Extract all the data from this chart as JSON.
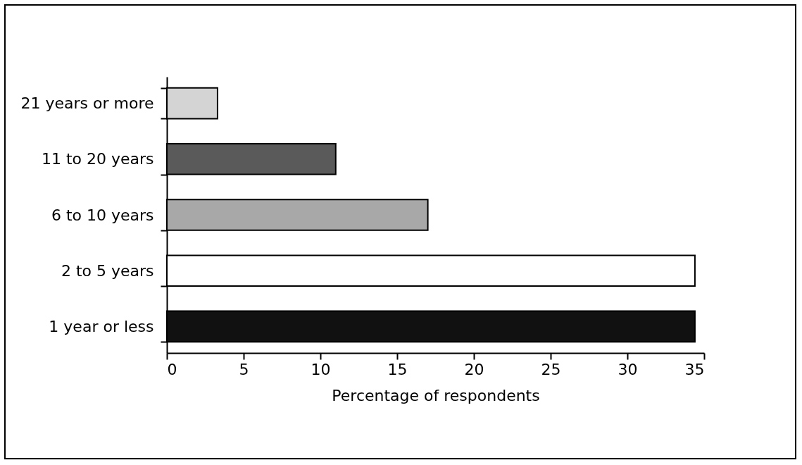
{
  "chart_data": {
    "type": "bar",
    "orientation": "horizontal",
    "xlabel": "Percentage of respondents",
    "categories": [
      "21 years or more",
      "11 to 20 years",
      "6 to 10 years",
      "2 to 5 years",
      "1 year or less"
    ],
    "values": [
      3.3,
      11,
      17,
      34.4,
      34.4
    ],
    "colors": [
      "#d4d4d4",
      "#5a5a5a",
      "#a8a8a8",
      "#ffffff",
      "#111111"
    ],
    "xlim": [
      0,
      35
    ],
    "xticks": [
      0,
      5,
      10,
      15,
      20,
      25,
      30,
      35
    ]
  }
}
